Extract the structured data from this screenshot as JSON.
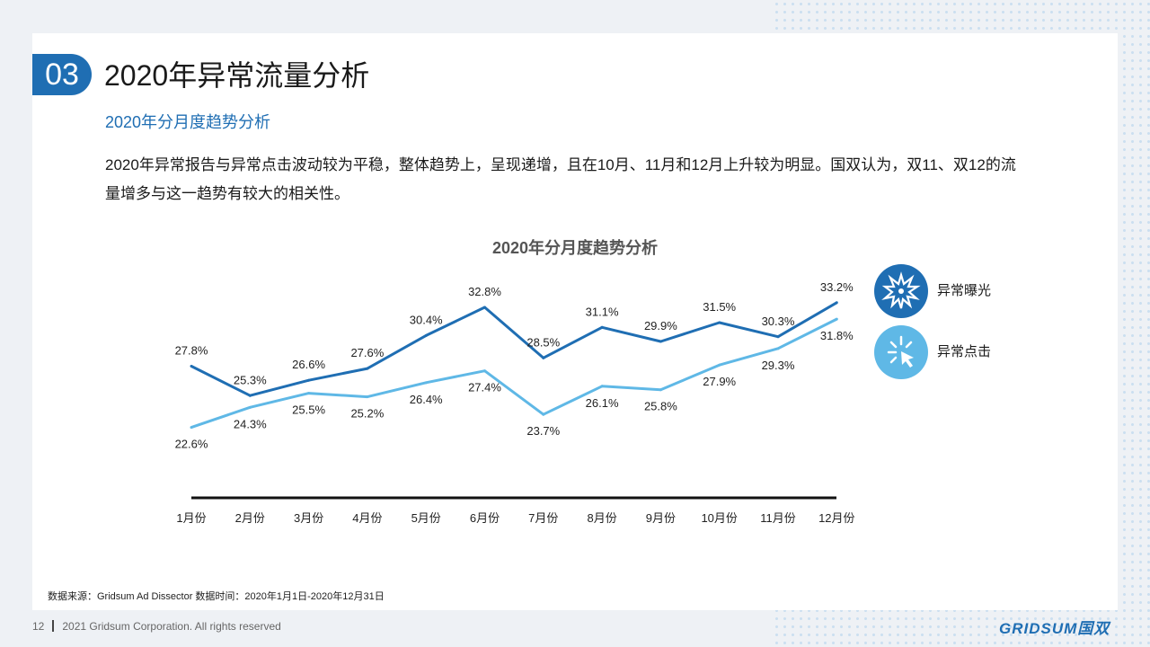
{
  "section": {
    "number": "03",
    "title": "2020年异常流量分析"
  },
  "subtitle": "2020年分月度趋势分析",
  "description": "2020年异常报告与异常点击波动较为平稳，整体趋势上，呈现递增，且在10月、11月和12月上升较为明显。国双认为，双11、双12的流量增多与这一趋势有较大的相关性。",
  "chart_data": {
    "type": "line",
    "title": "2020年分月度趋势分析",
    "categories": [
      "1月份",
      "2月份",
      "3月份",
      "4月份",
      "5月份",
      "6月份",
      "7月份",
      "8月份",
      "9月份",
      "10月份",
      "11月份",
      "12月份"
    ],
    "series": [
      {
        "name": "异常曝光",
        "color": "#1f6eb3",
        "values": [
          27.8,
          25.3,
          26.6,
          27.6,
          30.4,
          32.8,
          28.5,
          31.1,
          29.9,
          31.5,
          30.3,
          33.2
        ],
        "labels": [
          "27.8%",
          "25.3%",
          "26.6%",
          "27.6%",
          "30.4%",
          "32.8%",
          "28.5%",
          "31.1%",
          "29.9%",
          "31.5%",
          "30.3%",
          "33.2%"
        ]
      },
      {
        "name": "异常点击",
        "color": "#5fb8e6",
        "values": [
          22.6,
          24.3,
          25.5,
          25.2,
          26.4,
          27.4,
          23.7,
          26.1,
          25.8,
          27.9,
          29.3,
          31.8
        ],
        "labels": [
          "22.6%",
          "24.3%",
          "25.5%",
          "25.2%",
          "26.4%",
          "27.4%",
          "23.7%",
          "26.1%",
          "25.8%",
          "27.9%",
          "29.3%",
          "31.8%"
        ]
      }
    ],
    "legend": "right",
    "grid": false
  },
  "legend_icons": [
    "burst-icon",
    "click-icon"
  ],
  "source": "数据来源：Gridsum Ad Dissector 数据时间：2020年1月1日-2020年12月31日",
  "footer": {
    "page": "12",
    "copyright": "2021 Gridsum Corporation. All rights reserved"
  },
  "logo": "GRIDSUM国双"
}
